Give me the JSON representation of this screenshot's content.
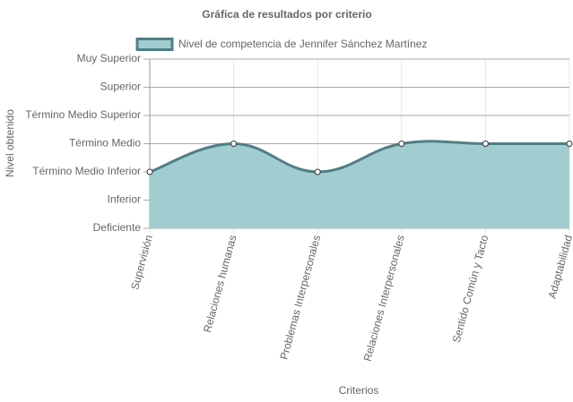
{
  "chart_data": {
    "type": "line",
    "title": "Gráfica de resultados por criterio",
    "categories": [
      "Supervisión",
      "Relaciones humanas",
      "Problemas Interpersonales",
      "Relaciones Interpersonales",
      "Sentido Común y Tacto",
      "Adaptabilidad"
    ],
    "series": [
      {
        "name": "Nivel de competencia de Jennifer Sánchez Martínez",
        "color": "#4f7f86",
        "fill": "#a2cdd0",
        "values": [
          3,
          4,
          3,
          4,
          4,
          4
        ]
      }
    ],
    "ylim": [
      1,
      7
    ],
    "yticks": [
      {
        "value": 1,
        "label": "Deficiente"
      },
      {
        "value": 2,
        "label": "Inferior"
      },
      {
        "value": 3,
        "label": "Término Medio Inferior"
      },
      {
        "value": 4,
        "label": "Término Medio"
      },
      {
        "value": 5,
        "label": "Término Medio Superior"
      },
      {
        "value": 6,
        "label": "Superior"
      },
      {
        "value": 7,
        "label": "Muy Superior"
      }
    ],
    "x_label": "Criterios",
    "y_label": "Nivel obtenido",
    "grid": true,
    "legend": "top"
  }
}
